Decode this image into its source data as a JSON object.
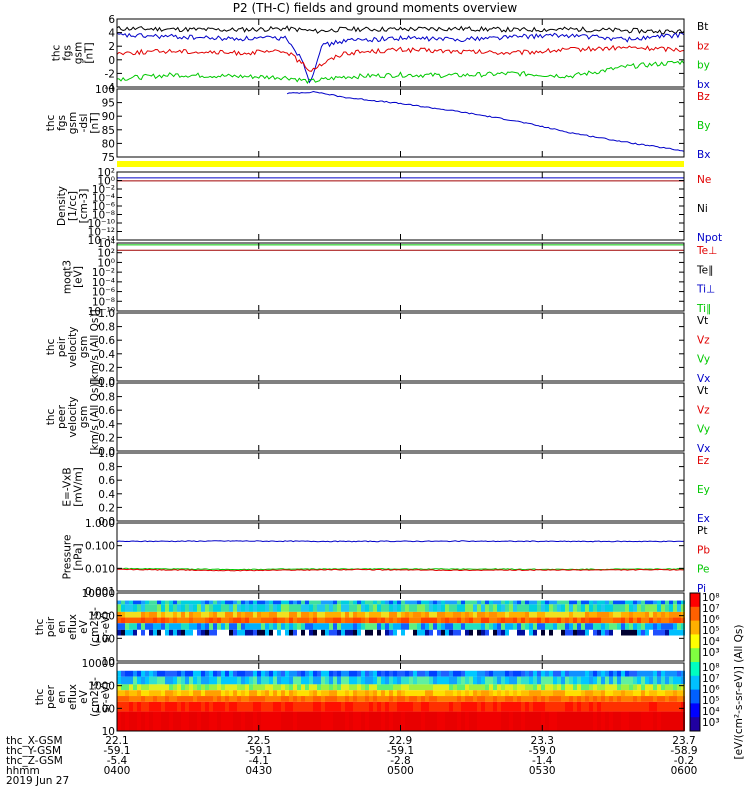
{
  "title": "P2 (TH-C) fields and ground moments overview",
  "colors": {
    "black": "#000000",
    "red": "#e00000",
    "green": "#00c800",
    "blue": "#0000c8",
    "dkred": "#a00000",
    "yellow": "#ffff00"
  },
  "footer": {
    "row_labels": [
      "thc_X-GSM",
      "thc_Y-GSM",
      "thc_Z-GSM",
      "hhmm",
      "2019 Jun 27"
    ],
    "columns": [
      [
        "22.1",
        "-59.1",
        "-5.4",
        "0400"
      ],
      [
        "22.5",
        "-59.1",
        "-4.1",
        "0430"
      ],
      [
        "22.9",
        "-59.1",
        "-2.8",
        "0500"
      ],
      [
        "23.3",
        "-59.0",
        "-1.4",
        "0530"
      ],
      [
        "23.7",
        "-58.9",
        "-0.2",
        "0600"
      ]
    ]
  },
  "colorbar": {
    "ticks": [
      "10⁸",
      "10⁷",
      "10⁶",
      "10⁵",
      "10⁴",
      "10³"
    ],
    "label": "[eV/(cm²-s-sr-eV)] (All Qs)"
  },
  "chart_data": [
    {
      "type": "line",
      "id": "fgs",
      "ylabel_lines": [
        "thc",
        "fgs",
        "gsm",
        "[nT]"
      ],
      "yticks": [
        "6",
        "4",
        "2",
        "0",
        "-2",
        "-4"
      ],
      "ylim": [
        -4,
        6
      ],
      "legend": [
        {
          "text": "Bt",
          "color": "#000000"
        },
        {
          "text": "bz",
          "color": "#e00000"
        },
        {
          "text": "by",
          "color": "#00c800"
        },
        {
          "text": "bx",
          "color": "#0000c8"
        }
      ],
      "series": [
        {
          "color": "#000000",
          "x": [
            0,
            0.1,
            0.2,
            0.3,
            0.35,
            0.4,
            0.5,
            0.6,
            0.7,
            0.8,
            0.9,
            1.0
          ],
          "values": [
            4.6,
            4.5,
            4.4,
            4.6,
            4.2,
            4.5,
            4.5,
            4.6,
            4.4,
            4.5,
            4.3,
            4.1
          ]
        },
        {
          "color": "#0000c8",
          "x": [
            0,
            0.1,
            0.2,
            0.3,
            0.33,
            0.34,
            0.36,
            0.4,
            0.5,
            0.6,
            0.7,
            0.8,
            0.9,
            1.0
          ],
          "values": [
            3.6,
            3.4,
            3.1,
            3.2,
            -0.5,
            -3.5,
            2.0,
            2.8,
            3.2,
            3.0,
            3.4,
            3.6,
            3.0,
            3.7
          ]
        },
        {
          "color": "#e00000",
          "x": [
            0,
            0.1,
            0.2,
            0.3,
            0.34,
            0.4,
            0.5,
            0.6,
            0.7,
            0.8,
            0.9,
            1.0
          ],
          "values": [
            1.0,
            1.3,
            1.0,
            1.2,
            -1.5,
            1.0,
            1.5,
            1.2,
            1.0,
            1.5,
            1.8,
            1.5
          ]
        },
        {
          "color": "#00c800",
          "x": [
            0,
            0.1,
            0.2,
            0.3,
            0.34,
            0.4,
            0.5,
            0.6,
            0.7,
            0.8,
            0.9,
            1.0
          ],
          "values": [
            -2.8,
            -2.2,
            -2.4,
            -2.6,
            -3.2,
            -2.5,
            -2.2,
            -2.3,
            -2.0,
            -2.4,
            -1.0,
            -0.3
          ]
        }
      ]
    },
    {
      "type": "line",
      "id": "fgs-dsl",
      "ylabel_lines": [
        "thc",
        "fgs",
        "gsm",
        "-dsl",
        "[nT]"
      ],
      "yticks": [
        "100",
        "95",
        "90",
        "85",
        "80",
        "75"
      ],
      "ylim": [
        73,
        101
      ],
      "legend": [
        {
          "text": "Bz",
          "color": "#e00000"
        },
        {
          "text": "By",
          "color": "#00c800"
        },
        {
          "text": "Bx",
          "color": "#0000c8"
        }
      ],
      "series": [
        {
          "color": "#0000c8",
          "x": [
            0.3,
            0.35,
            0.4,
            0.5,
            0.6,
            0.7,
            0.8,
            0.9,
            1.0
          ],
          "values": [
            99.2,
            99.8,
            97.6,
            95.0,
            91.8,
            88.0,
            83.0,
            79.0,
            75.5
          ]
        }
      ]
    },
    {
      "type": "line",
      "id": "density",
      "log": true,
      "ylabel_lines": [
        "Density",
        "[1/cc]",
        "[cm-3]"
      ],
      "yticks": [
        "10²",
        "10⁰",
        "10⁻²",
        "10⁻⁴",
        "10⁻⁶",
        "10⁻⁸",
        "10⁻¹⁰",
        "10⁻¹²",
        "10⁻¹⁴"
      ],
      "ylim": [
        -14,
        2
      ],
      "legend": [
        {
          "text": "Ne",
          "color": "#e00000"
        },
        {
          "text": "Ni",
          "color": "#000000"
        },
        {
          "text": "Npot",
          "color": "#0000c8"
        }
      ],
      "series": [
        {
          "color": "#0000c8",
          "x": [
            0,
            1
          ],
          "values": [
            0.6,
            0.6
          ]
        },
        {
          "color": "#a00000",
          "x": [
            0,
            1
          ],
          "values": [
            -0.1,
            -0.1
          ]
        }
      ]
    },
    {
      "type": "line",
      "id": "moqt",
      "log": true,
      "ylabel_lines": [
        "moqt3",
        "[eV]"
      ],
      "yticks": [
        "10⁴",
        "10²",
        "10⁰",
        "10⁻²",
        "10⁻⁴",
        "10⁻⁶",
        "10⁻⁸",
        "10⁻¹⁰"
      ],
      "ylim": [
        -10,
        4
      ],
      "legend": [
        {
          "text": "Te⊥",
          "color": "#e00000"
        },
        {
          "text": "Te∥",
          "color": "#000000"
        },
        {
          "text": "Ti⊥",
          "color": "#0000c8"
        },
        {
          "text": "Ti∥",
          "color": "#00c800"
        }
      ],
      "series": [
        {
          "color": "#00c800",
          "x": [
            0,
            1
          ],
          "values": [
            3.6,
            3.6
          ]
        },
        {
          "color": "#a00000",
          "x": [
            0,
            1
          ],
          "values": [
            2.5,
            2.5
          ]
        }
      ]
    },
    {
      "type": "line",
      "id": "peir-vel",
      "ylabel_lines": [
        "thc",
        "peir",
        "velocity",
        "gsm",
        "[km/s (All Qs)]"
      ],
      "yticks": [
        "1.0",
        "0.8",
        "0.6",
        "0.4",
        "0.2",
        "0.0"
      ],
      "ylim": [
        0,
        1
      ],
      "legend": [
        {
          "text": "Vt",
          "color": "#000000"
        },
        {
          "text": "Vz",
          "color": "#e00000"
        },
        {
          "text": "Vy",
          "color": "#00c800"
        },
        {
          "text": "Vx",
          "color": "#0000c8"
        }
      ],
      "series": []
    },
    {
      "type": "line",
      "id": "peer-vel",
      "ylabel_lines": [
        "thc",
        "peer",
        "velocity",
        "gsm",
        "[km/s (All Qs)]"
      ],
      "yticks": [
        "1.0",
        "0.8",
        "0.6",
        "0.4",
        "0.2",
        "0.0"
      ],
      "ylim": [
        0,
        1
      ],
      "legend": [
        {
          "text": "Vt",
          "color": "#000000"
        },
        {
          "text": "Vz",
          "color": "#e00000"
        },
        {
          "text": "Vy",
          "color": "#00c800"
        },
        {
          "text": "Vx",
          "color": "#0000c8"
        }
      ],
      "series": []
    },
    {
      "type": "line",
      "id": "efield",
      "ylabel_lines": [
        "E=-VxB",
        "[mV/m]"
      ],
      "yticks": [
        "1.0",
        "0.8",
        "0.6",
        "0.4",
        "0.2",
        "0.0"
      ],
      "ylim": [
        0,
        1
      ],
      "legend": [
        {
          "text": "Ez",
          "color": "#e00000"
        },
        {
          "text": "Ey",
          "color": "#00c800"
        },
        {
          "text": "Ex",
          "color": "#0000c8"
        }
      ],
      "series": []
    },
    {
      "type": "line",
      "id": "pressure",
      "log": true,
      "ylabel_lines": [
        "Pressure",
        "[nPa]"
      ],
      "yticks": [
        "1.000",
        "0.100",
        "0.010",
        "0.001"
      ],
      "ylim": [
        -3.2,
        0.2
      ],
      "legend": [
        {
          "text": "Pt",
          "color": "#000000"
        },
        {
          "text": "Pb",
          "color": "#e00000"
        },
        {
          "text": "Pe",
          "color": "#00c800"
        },
        {
          "text": "Pi",
          "color": "#0000c8"
        }
      ],
      "series": [
        {
          "color": "#0000c8",
          "x": [
            0,
            0.2,
            0.4,
            0.6,
            0.8,
            1.0
          ],
          "values": [
            -0.72,
            -0.7,
            -0.72,
            -0.71,
            -0.72,
            -0.72
          ]
        },
        {
          "color": "#00c800",
          "x": [
            0,
            0.2,
            0.4,
            0.6,
            0.8,
            1.0
          ],
          "values": [
            -2.08,
            -2.12,
            -2.1,
            -2.1,
            -2.12,
            -2.1
          ]
        },
        {
          "color": "#e00000",
          "x": [
            0,
            0.2,
            0.4,
            0.6,
            0.8,
            1.0
          ],
          "values": [
            -2.12,
            -2.18,
            -2.13,
            -2.16,
            -2.15,
            -2.14
          ]
        }
      ]
    },
    {
      "type": "heatmap",
      "id": "peir-flux",
      "ylabel_lines": [
        "thc",
        "peir",
        "en",
        "eflux",
        "eV",
        "(cm2-s-",
        "sr-eV)"
      ],
      "yticks": [
        "10000",
        "1000",
        "100",
        "10"
      ],
      "ylim": [
        0.7,
        4.3
      ],
      "bands": [
        {
          "from": 3.9,
          "to": 3.7,
          "colors": [
            "#0050ff",
            "#1aa0ff",
            "#00d0e0",
            "#40e0a0"
          ]
        },
        {
          "from": 3.7,
          "to": 3.3,
          "colors": [
            "#00d0e0",
            "#40e0a0",
            "#80f060",
            "#20c8f0"
          ]
        },
        {
          "from": 3.3,
          "to": 3.0,
          "colors": [
            "#f0e020",
            "#ff9000",
            "#ffb000"
          ]
        },
        {
          "from": 3.0,
          "to": 2.7,
          "colors": [
            "#ff4000",
            "#ff6000",
            "#ff8000"
          ]
        },
        {
          "from": 2.7,
          "to": 2.35,
          "colors": [
            "#20e0c0",
            "#00b0ff",
            "#60f080",
            "#1060ff"
          ]
        },
        {
          "from": 2.35,
          "to": 2.05,
          "colors": [
            "#000030",
            "#0010a0",
            "#2050ff",
            "#00c0ff",
            "#ffffff"
          ]
        }
      ]
    },
    {
      "type": "heatmap",
      "id": "peer-flux",
      "ylabel_lines": [
        "thc",
        "peer",
        "en",
        "eflux",
        "eV",
        "(cm2-s-",
        "sr-eV)"
      ],
      "yticks": [
        "10000",
        "1000",
        "100",
        "10"
      ],
      "ylim": [
        0.8,
        4.3
      ],
      "bands": [
        {
          "from": 3.9,
          "to": 3.6,
          "colors": [
            "#0040ff",
            "#1090ff",
            "#00c8ff",
            "#2060ff"
          ]
        },
        {
          "from": 3.6,
          "to": 3.2,
          "colors": [
            "#00c8ff",
            "#30e0d0",
            "#10a0ff",
            "#60f0a0"
          ]
        },
        {
          "from": 3.2,
          "to": 2.9,
          "colors": [
            "#60f070",
            "#a0f040",
            "#e0f020"
          ]
        },
        {
          "from": 2.9,
          "to": 2.6,
          "colors": [
            "#ffe000",
            "#ffc000",
            "#ffa000"
          ]
        },
        {
          "from": 2.6,
          "to": 2.3,
          "colors": [
            "#ff8000",
            "#ff6000"
          ]
        },
        {
          "from": 2.3,
          "to": 1.8,
          "colors": [
            "#ff3000",
            "#ff1000"
          ]
        },
        {
          "from": 1.8,
          "to": 0.8,
          "colors": [
            "#f00000",
            "#e80000"
          ]
        }
      ]
    }
  ]
}
